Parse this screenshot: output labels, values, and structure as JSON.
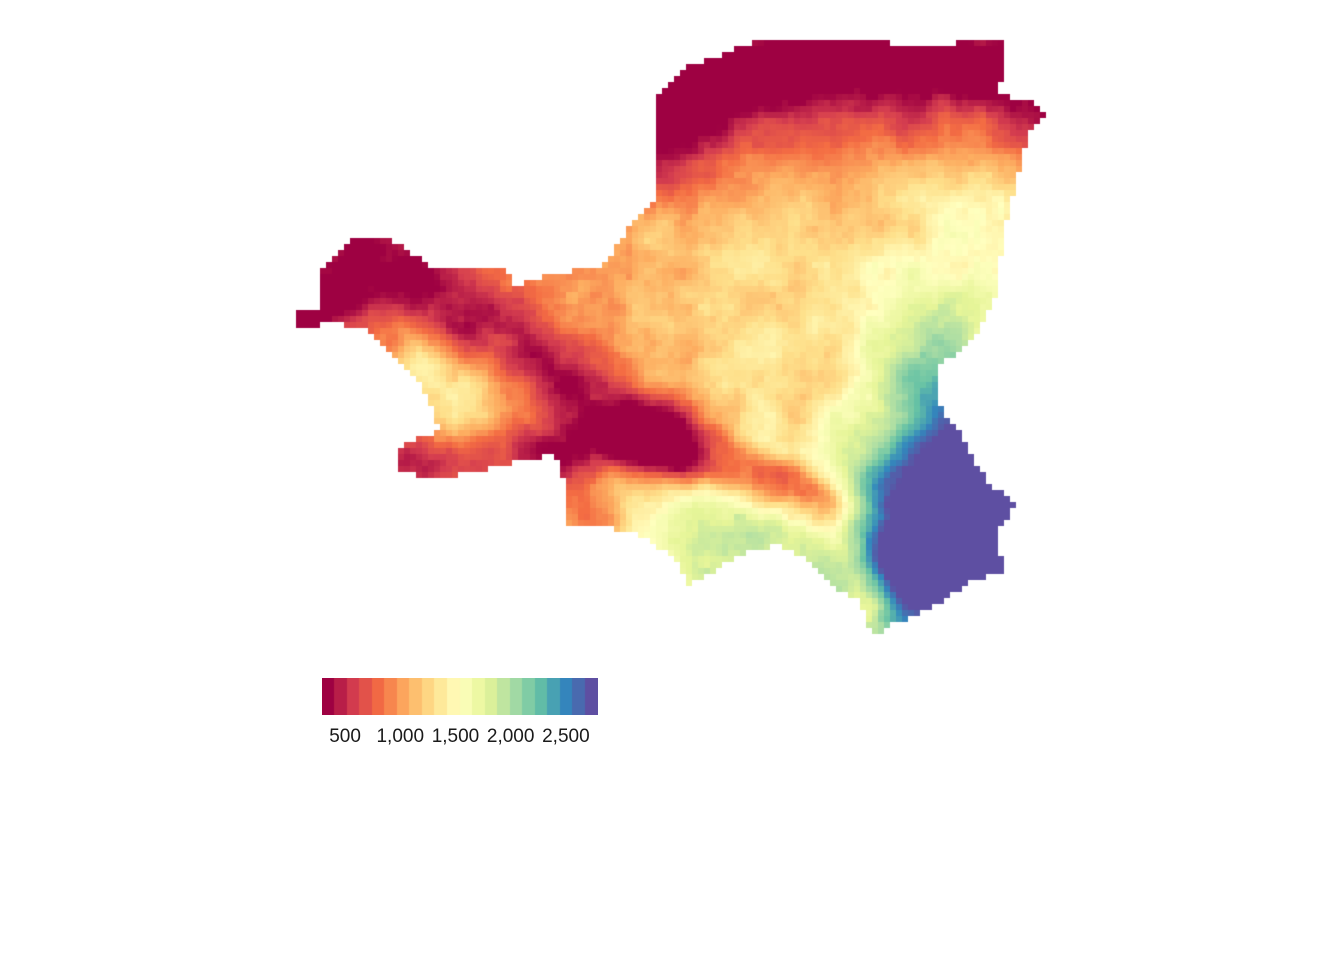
{
  "map": {
    "value_range": [
      300,
      2800
    ],
    "palette": [
      "#9e0142",
      "#d53e4f",
      "#f46d43",
      "#fdae61",
      "#fee08b",
      "#ffffbf",
      "#e6f598",
      "#abdda4",
      "#66c2a5",
      "#3288bd",
      "#5e4fa2"
    ]
  },
  "legend": {
    "min": 300,
    "max": 2800,
    "ticks": [
      {
        "value": 500,
        "label": "500"
      },
      {
        "value": 1000,
        "label": "1,000"
      },
      {
        "value": 1500,
        "label": "1,500"
      },
      {
        "value": 2000,
        "label": "2,000"
      },
      {
        "value": 2500,
        "label": "2,500"
      }
    ]
  }
}
